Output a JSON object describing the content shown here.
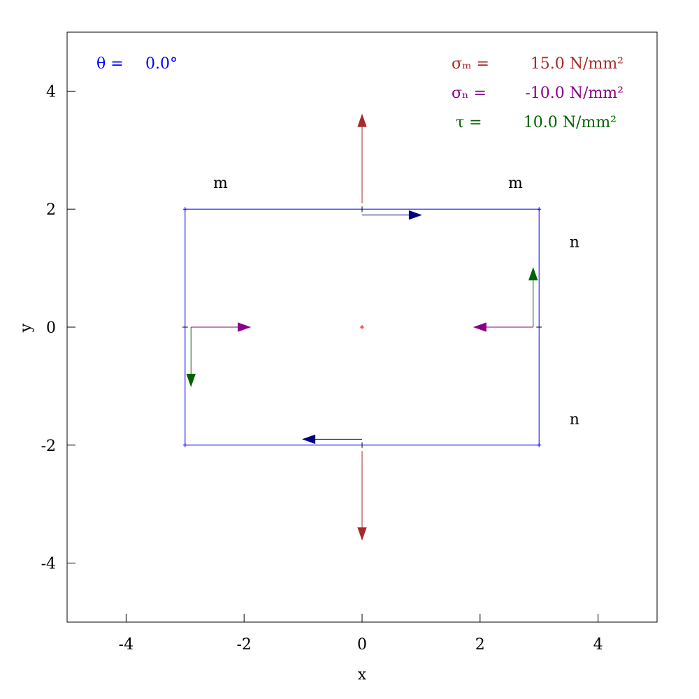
{
  "chart_data": {
    "type": "diagram",
    "xlabel": "x",
    "ylabel": "y",
    "xlim": [
      -5,
      5
    ],
    "ylim": [
      -5,
      5
    ],
    "xticks": [
      -4,
      -2,
      0,
      2,
      4
    ],
    "yticks": [
      -4,
      -2,
      0,
      2,
      4
    ],
    "grid": false,
    "element": {
      "x_min": -3,
      "x_max": 3,
      "y_min": -2,
      "y_max": 2
    },
    "annotations": {
      "theta": {
        "label": "θ =",
        "value": "0.0°"
      },
      "sigma_m": {
        "label": "σₘ =",
        "value": "15.0 N/mm²"
      },
      "sigma_n": {
        "label": "σₙ =",
        "value": "-10.0 N/mm²"
      },
      "tau": {
        "label": "τ =",
        "value": "10.0 N/mm²"
      }
    },
    "plane_labels": [
      {
        "text": "m",
        "x": -2.4,
        "y": 2.45
      },
      {
        "text": "m",
        "x": 2.6,
        "y": 2.45
      },
      {
        "text": "n",
        "x": 3.6,
        "y": 1.45
      },
      {
        "text": "n",
        "x": 3.6,
        "y": -1.55
      }
    ],
    "arrows": [
      {
        "group": "sigma_m",
        "from": [
          0,
          2.1
        ],
        "to": [
          0,
          3.6
        ]
      },
      {
        "group": "sigma_m",
        "from": [
          0,
          -2.1
        ],
        "to": [
          0,
          -3.6
        ]
      },
      {
        "group": "sigma_n",
        "from": [
          2.9,
          0
        ],
        "to": [
          1.9,
          0
        ]
      },
      {
        "group": "sigma_n",
        "from": [
          -2.9,
          0
        ],
        "to": [
          -1.9,
          0
        ]
      },
      {
        "group": "tau",
        "from": [
          2.9,
          0
        ],
        "to": [
          2.9,
          1.0
        ]
      },
      {
        "group": "tau",
        "from": [
          -2.9,
          0
        ],
        "to": [
          -2.9,
          -1.0
        ]
      },
      {
        "group": "shear_mn",
        "from": [
          0,
          1.9
        ],
        "to": [
          1.0,
          1.9
        ]
      },
      {
        "group": "shear_mn",
        "from": [
          0,
          -1.9
        ],
        "to": [
          -1.0,
          -1.9
        ]
      }
    ],
    "colors": {
      "element": "#0000ff",
      "theta": "#0000ff",
      "sigma_m": "#a52a2a",
      "sigma_n": "#8b008b",
      "tau": "#006400",
      "shear_mn": "#000080",
      "center": "#ff0000",
      "frame": "#000000"
    }
  }
}
